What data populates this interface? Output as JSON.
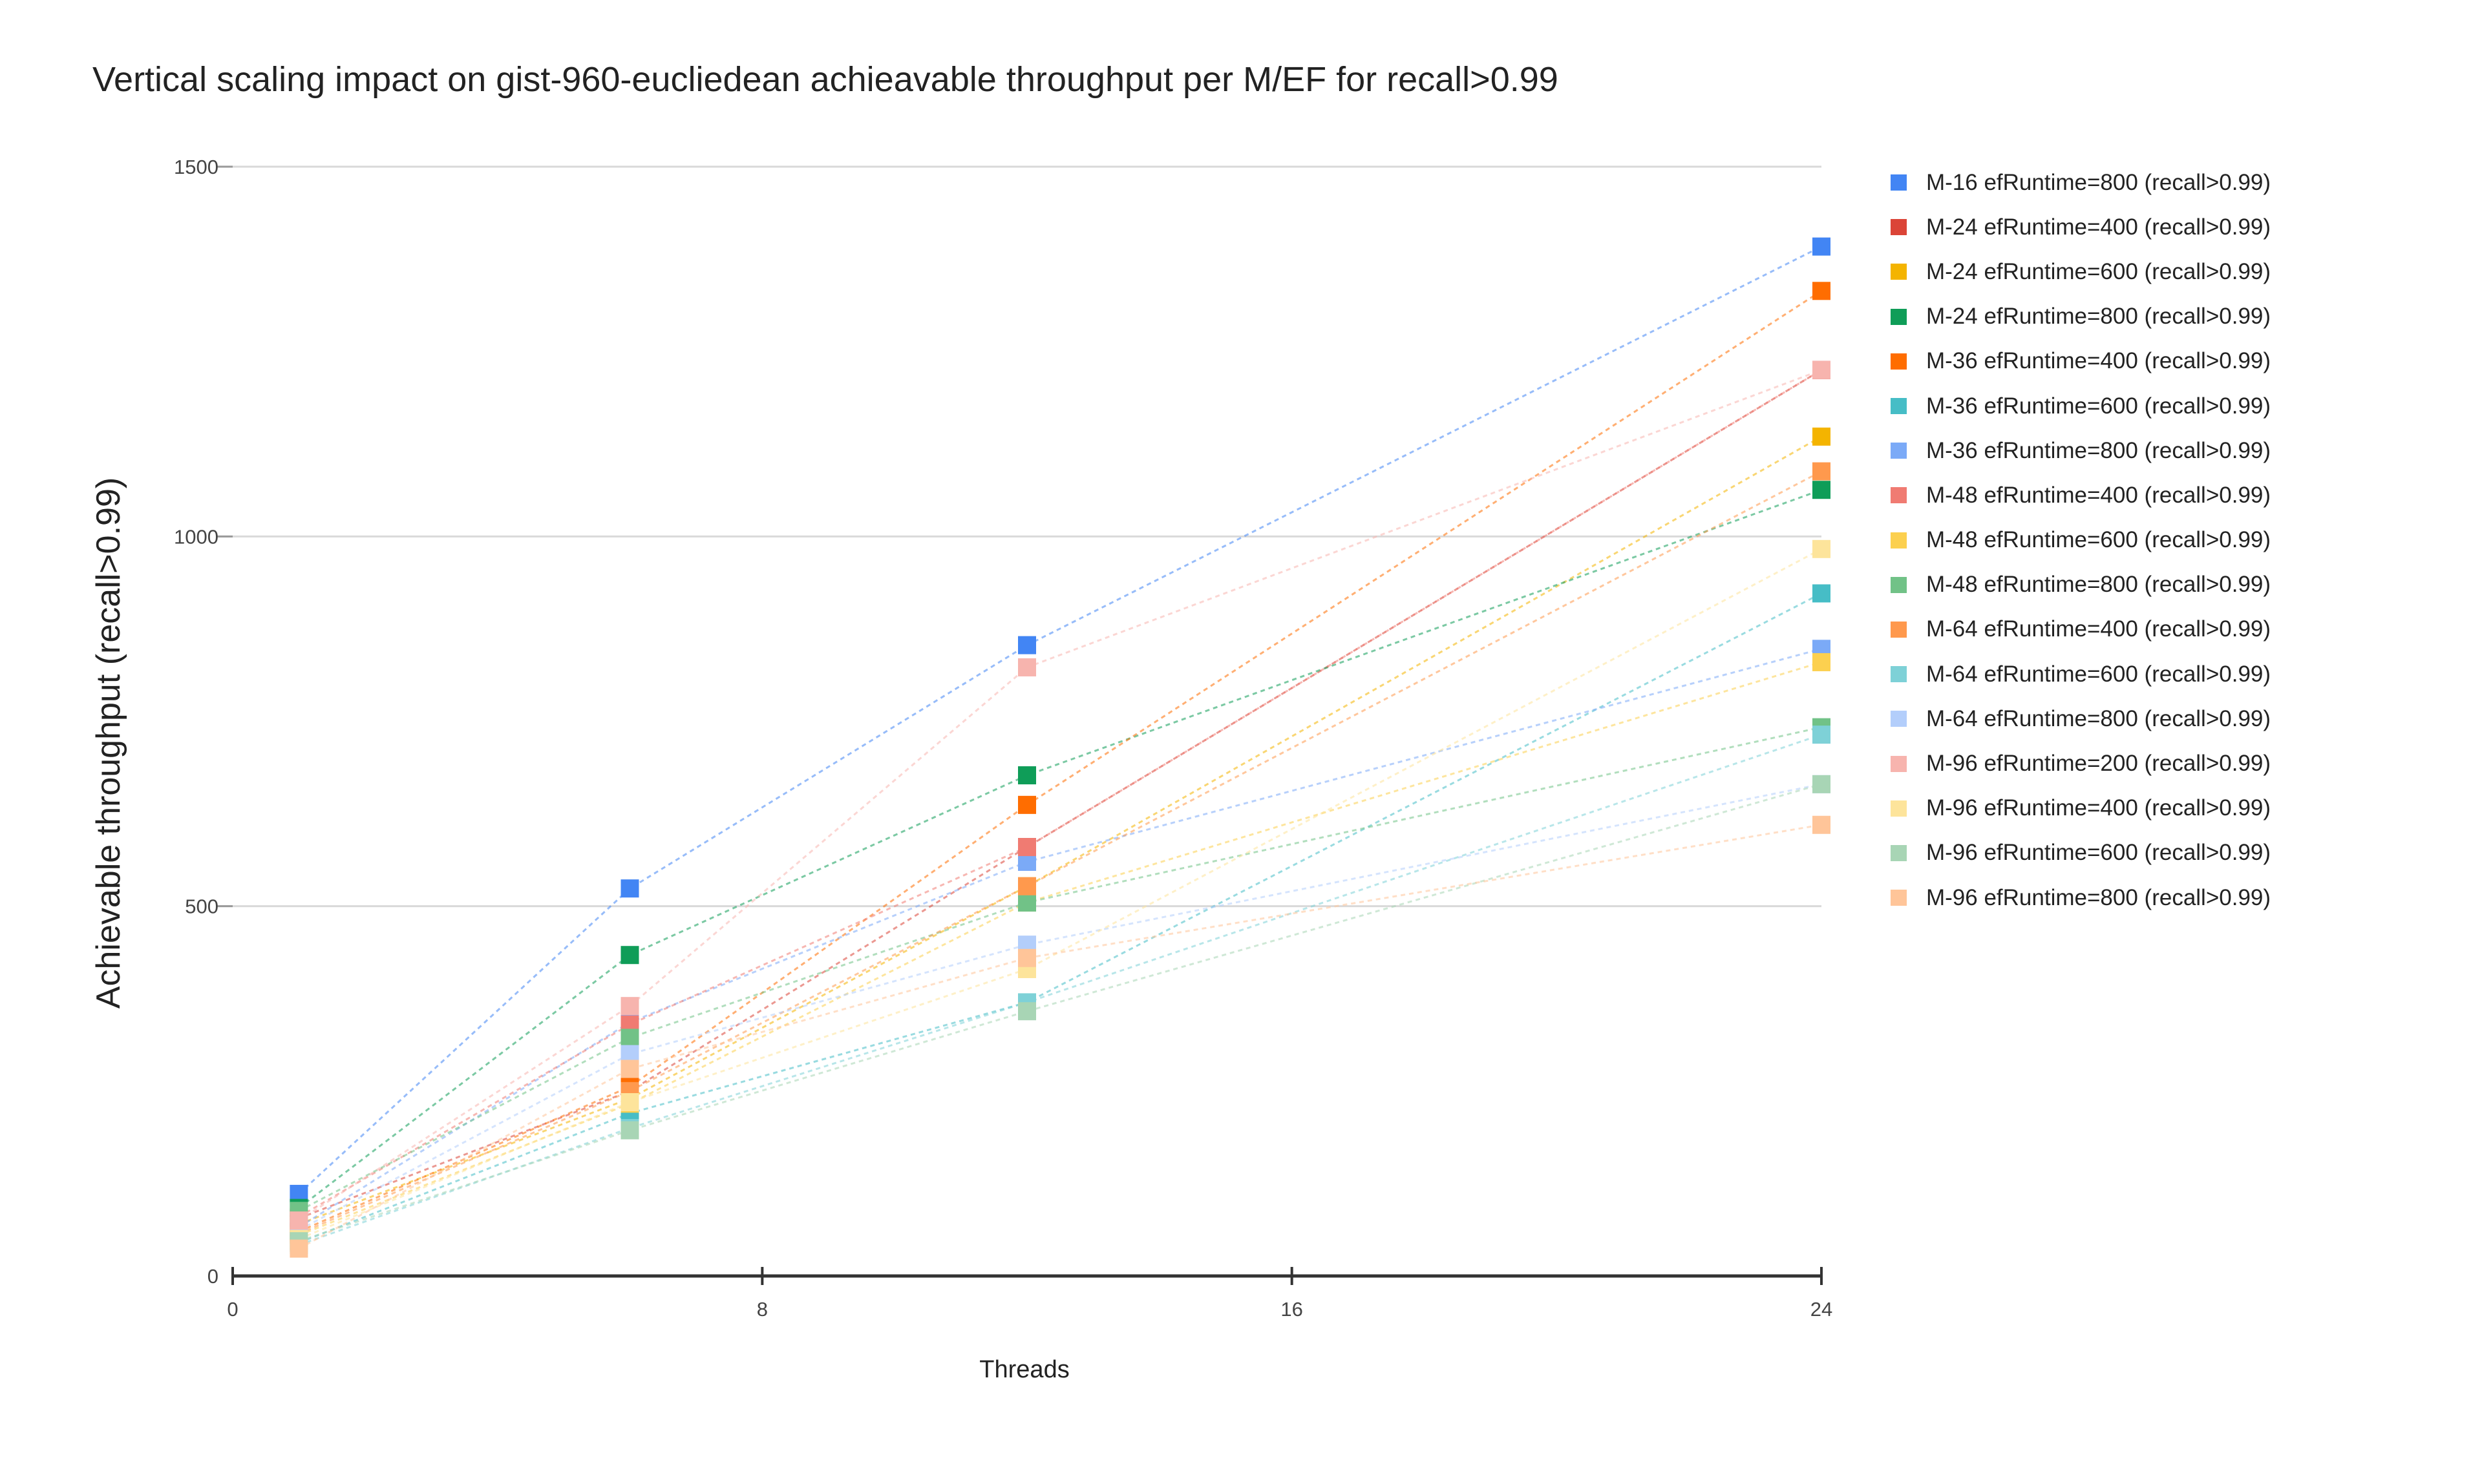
{
  "chart_data": {
    "type": "line",
    "title": "Vertical scaling impact on gist-960-eucliedean achieavable throughput per M/EF for recall>0.99",
    "xlabel": "Threads",
    "ylabel": "Achievable throughput (recall>0.99)",
    "xlim": [
      0,
      24
    ],
    "ylim": [
      0,
      1500
    ],
    "x_ticks": [
      "0",
      "8",
      "16",
      "24"
    ],
    "y_ticks": [
      "0",
      "500",
      "1000",
      "1500"
    ],
    "grid": true,
    "legend_position": "right",
    "x": [
      1,
      6,
      12,
      24
    ],
    "series": [
      {
        "name": "M-16 efRuntime=800 (recall>0.99)",
        "color": "#4285f4",
        "values": [
          111,
          524,
          853,
          1392
        ]
      },
      {
        "name": "M-24 efRuntime=400 (recall>0.99)",
        "color": "#db4437",
        "values": [
          78,
          250,
          580,
          1225
        ]
      },
      {
        "name": "M-24 efRuntime=600 (recall>0.99)",
        "color": "#f4b400",
        "values": [
          70,
          240,
          527,
          1135
        ]
      },
      {
        "name": "M-24 efRuntime=800 (recall>0.99)",
        "color": "#0f9d58",
        "values": [
          92,
          434,
          677,
          1063
        ]
      },
      {
        "name": "M-36 efRuntime=400 (recall>0.99)",
        "color": "#ff6d00",
        "values": [
          60,
          256,
          637,
          1332
        ]
      },
      {
        "name": "M-36 efRuntime=600 (recall>0.99)",
        "color": "#46bdc6",
        "values": [
          45,
          220,
          370,
          923
        ]
      },
      {
        "name": "M-36 efRuntime=800 (recall>0.99)",
        "color": "#7baaf7",
        "values": [
          66,
          343,
          560,
          848
        ]
      },
      {
        "name": "M-48 efRuntime=400 (recall>0.99)",
        "color": "#f07b72",
        "values": [
          80,
          340,
          580,
          1225
        ]
      },
      {
        "name": "M-48 efRuntime=600 (recall>0.99)",
        "color": "#fcd04f",
        "values": [
          55,
          233,
          505,
          830
        ]
      },
      {
        "name": "M-48 efRuntime=800 (recall>0.99)",
        "color": "#71c287",
        "values": [
          88,
          322,
          505,
          742
        ]
      },
      {
        "name": "M-64 efRuntime=400 (recall>0.99)",
        "color": "#ff994d",
        "values": [
          57,
          250,
          527,
          1088
        ]
      },
      {
        "name": "M-64 efRuntime=600 (recall>0.99)",
        "color": "#7ed1d7",
        "values": [
          42,
          200,
          370,
          732
        ]
      },
      {
        "name": "M-64 efRuntime=800 (recall>0.99)",
        "color": "#b3cefb",
        "values": [
          62,
          300,
          448,
          665
        ]
      },
      {
        "name": "M-96 efRuntime=200 (recall>0.99)",
        "color": "#f7b4ae",
        "values": [
          75,
          365,
          823,
          1225
        ]
      },
      {
        "name": "M-96 efRuntime=400 (recall>0.99)",
        "color": "#fde49b",
        "values": [
          50,
          235,
          415,
          983
        ]
      },
      {
        "name": "M-96 efRuntime=600 (recall>0.99)",
        "color": "#a8d5b5",
        "values": [
          47,
          197,
          358,
          665
        ]
      },
      {
        "name": "M-96 efRuntime=800 (recall>0.99)",
        "color": "#ffc599",
        "values": [
          37,
          280,
          430,
          610
        ]
      }
    ]
  }
}
